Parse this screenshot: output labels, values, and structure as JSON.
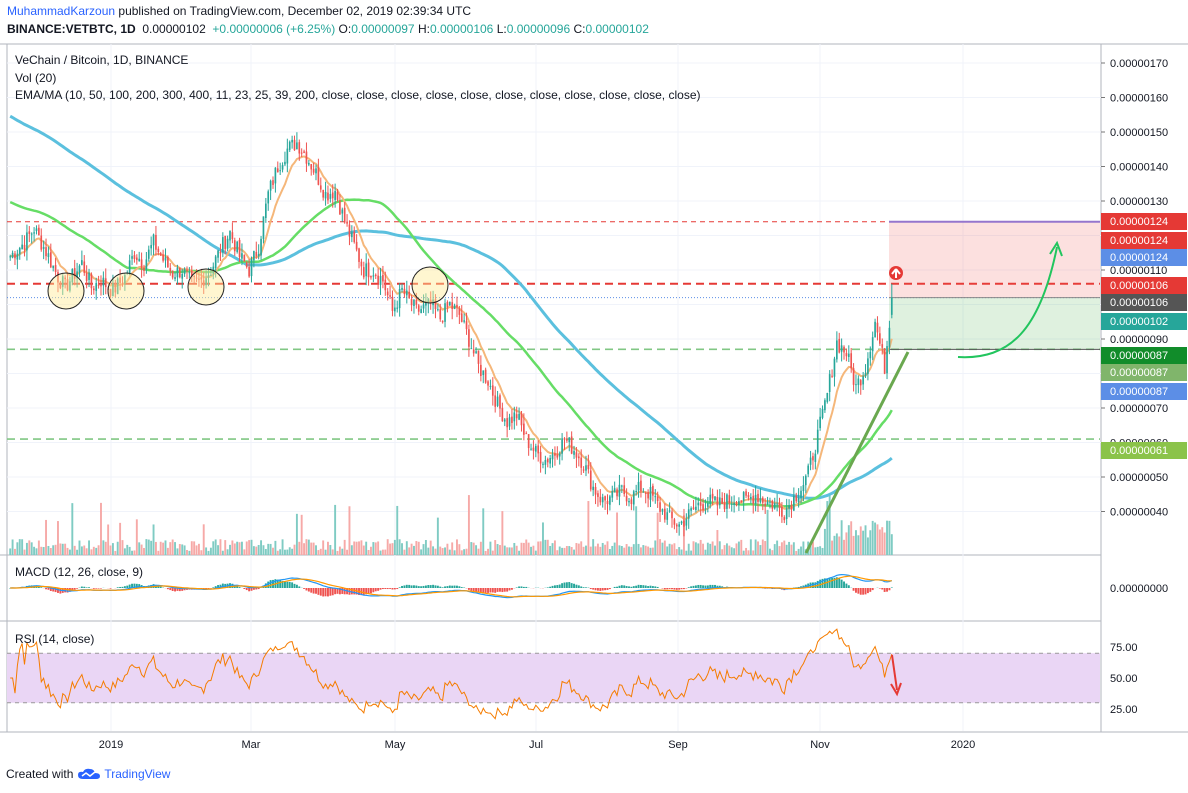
{
  "header": {
    "author": "MuhammadKarzoun",
    "published": "published on TradingView.com, December 02, 2019 02:39:34 UTC",
    "symbol": "BINANCE:VETBTC, 1D",
    "price": "0.00000102",
    "change": "+0.00000006 (+6.25%)",
    "o_label": "O:",
    "o": "0.00000097",
    "h_label": "H:",
    "h": "0.00000106",
    "l_label": "L:",
    "l": "0.00000096",
    "c_label": "C:",
    "c": "0.00000102"
  },
  "legend": {
    "title": "VeChain / Bitcoin, 1D, BINANCE",
    "vol": "Vol (20)",
    "ema": "EMA/MA (10, 50, 100, 200, 300, 400, 11, 23, 25, 39, 200, close, close, close, close, close, close, close, close, close, close, close)",
    "macd": "MACD (12, 26, close, 9)",
    "rsi": "RSI (14, close)"
  },
  "footer": {
    "created": "Created with",
    "brand": "TradingView"
  },
  "colors": {
    "up": "#26a69a",
    "down": "#ef5350",
    "ema_fast": "#f5b77a",
    "ma_mid": "#66dd66",
    "ma_slow": "#5bc0de",
    "red_dash": "#e53935",
    "green_dash": "#81c784",
    "rsi_line": "#f57c00",
    "rsi_band": "#ead6f5",
    "macd_line": "#2196f3",
    "signal_line": "#ff9800"
  },
  "chart_data": {
    "type": "candlestick",
    "axis": {
      "price_ticks": [
        "0.00000170",
        "0.00000160",
        "0.00000150",
        "0.00000140",
        "0.00000130",
        "0.00000120",
        "0.00000110",
        "0.00000100",
        "0.00000090",
        "0.00000080",
        "0.00000070",
        "0.00000060",
        "0.00000050",
        "0.00000040"
      ],
      "macd_ticks": [
        "0.00000000"
      ],
      "rsi_ticks": [
        "75.00",
        "50.00",
        "25.00"
      ],
      "time_ticks": [
        "2019",
        "Mar",
        "May",
        "Jul",
        "Sep",
        "Nov",
        "2020"
      ]
    },
    "price_tags": [
      {
        "text": "0.00000124",
        "color": "#e53935"
      },
      {
        "text": "0.00000124",
        "color": "#e53935"
      },
      {
        "text": "0.00000124",
        "color": "#5c8ee6"
      },
      {
        "text": "0.00000106",
        "color": "#e53935"
      },
      {
        "text": "0.00000106",
        "color": "#555555"
      },
      {
        "text": "0.00000102",
        "color": "#26a69a"
      },
      {
        "text": "0.00000087",
        "color": "#118c2a"
      },
      {
        "text": "0.00000087",
        "color": "#80b56b"
      },
      {
        "text": "0.00000087",
        "color": "#5c8ee6"
      },
      {
        "text": "0.00000061",
        "color": "#8bc34a"
      }
    ],
    "levels": {
      "resistance": 1.06,
      "entry": 1.02,
      "target": 1.24,
      "stop": 0.87,
      "support": 0.87,
      "support2": 0.61
    },
    "price_anchors": [
      [
        0,
        1.14
      ],
      [
        6,
        1.18
      ],
      [
        10,
        1.22
      ],
      [
        16,
        1.14
      ],
      [
        20,
        1.08
      ],
      [
        23,
        1.05
      ],
      [
        26,
        1.08
      ],
      [
        30,
        1.12
      ],
      [
        34,
        1.05
      ],
      [
        38,
        1.07
      ],
      [
        43,
        1.04
      ],
      [
        48,
        1.08
      ],
      [
        52,
        1.15
      ],
      [
        56,
        1.12
      ],
      [
        60,
        1.18
      ],
      [
        64,
        1.13
      ],
      [
        68,
        1.09
      ],
      [
        72,
        1.1
      ],
      [
        76,
        1.06
      ],
      [
        80,
        1.07
      ],
      [
        84,
        1.1
      ],
      [
        88,
        1.16
      ],
      [
        92,
        1.21
      ],
      [
        96,
        1.14
      ],
      [
        100,
        1.1
      ],
      [
        104,
        1.17
      ],
      [
        108,
        1.32
      ],
      [
        112,
        1.4
      ],
      [
        116,
        1.45
      ],
      [
        120,
        1.47
      ],
      [
        124,
        1.43
      ],
      [
        128,
        1.38
      ],
      [
        132,
        1.32
      ],
      [
        136,
        1.33
      ],
      [
        140,
        1.24
      ],
      [
        144,
        1.17
      ],
      [
        148,
        1.1
      ],
      [
        152,
        1.1
      ],
      [
        156,
        1.07
      ],
      [
        160,
        0.98
      ],
      [
        164,
        1.04
      ],
      [
        170,
        0.98
      ],
      [
        176,
        1.0
      ],
      [
        180,
        0.96
      ],
      [
        184,
        1.0
      ],
      [
        188,
        0.97
      ],
      [
        192,
        0.9
      ],
      [
        196,
        0.82
      ],
      [
        200,
        0.78
      ],
      [
        204,
        0.71
      ],
      [
        208,
        0.66
      ],
      [
        212,
        0.68
      ],
      [
        216,
        0.61
      ],
      [
        220,
        0.57
      ],
      [
        224,
        0.55
      ],
      [
        228,
        0.57
      ],
      [
        232,
        0.61
      ],
      [
        236,
        0.58
      ],
      [
        240,
        0.54
      ],
      [
        244,
        0.47
      ],
      [
        248,
        0.43
      ],
      [
        252,
        0.44
      ],
      [
        256,
        0.46
      ],
      [
        260,
        0.44
      ],
      [
        264,
        0.47
      ],
      [
        268,
        0.45
      ],
      [
        272,
        0.41
      ],
      [
        276,
        0.38
      ],
      [
        280,
        0.36
      ],
      [
        284,
        0.39
      ],
      [
        288,
        0.42
      ],
      [
        292,
        0.43
      ],
      [
        296,
        0.42
      ],
      [
        300,
        0.43
      ],
      [
        304,
        0.44
      ],
      [
        308,
        0.43
      ],
      [
        312,
        0.45
      ],
      [
        316,
        0.43
      ],
      [
        320,
        0.42
      ],
      [
        324,
        0.4
      ],
      [
        328,
        0.44
      ],
      [
        332,
        0.48
      ],
      [
        334,
        0.51
      ],
      [
        338,
        0.62
      ],
      [
        342,
        0.74
      ],
      [
        346,
        0.89
      ],
      [
        350,
        0.86
      ],
      [
        354,
        0.76
      ],
      [
        358,
        0.82
      ],
      [
        362,
        0.95
      ],
      [
        366,
        0.82
      ],
      [
        369,
        1.02
      ]
    ],
    "annotations": [
      {
        "type": "circle",
        "label": "support touch 1"
      },
      {
        "type": "circle",
        "label": "support touch 2"
      },
      {
        "type": "circle",
        "label": "support touch 3"
      },
      {
        "type": "circle",
        "label": "support touch 4"
      }
    ]
  }
}
